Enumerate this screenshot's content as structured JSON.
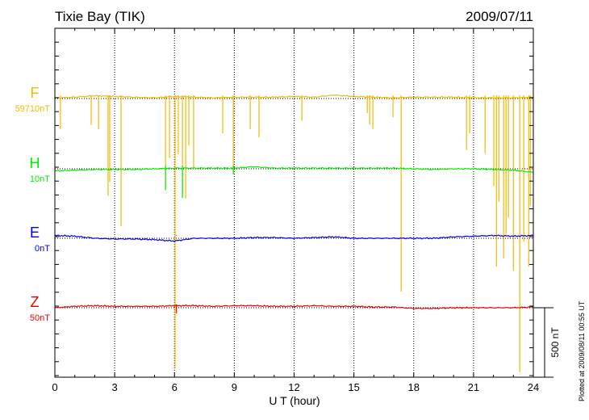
{
  "chart_data": {
    "type": "line",
    "title": "Tixie Bay (TIK)",
    "date": "2009/07/11",
    "xlabel": "U T (hour)",
    "xlim": [
      0,
      24
    ],
    "xticks": [
      "0",
      "3",
      "6",
      "9",
      "12",
      "15",
      "18",
      "21",
      "24"
    ],
    "scale_bar": "500 nT",
    "scale_bar_nT": 500,
    "footer": "Plotted at 2009/08/11 00:55 UT",
    "grid": "dotted vertical every 3 h, dotted baseline per component",
    "series": [
      {
        "name": "F",
        "baseline_label": "59710nT",
        "color": "#f5b800",
        "hours": [
          0,
          1,
          2,
          3,
          4,
          5,
          6,
          7,
          8,
          9,
          10,
          11,
          12,
          13,
          14,
          15,
          16,
          17,
          18,
          19,
          20,
          21,
          22,
          23,
          24
        ],
        "values": [
          5,
          10,
          20,
          15,
          10,
          5,
          15,
          10,
          5,
          10,
          10,
          10,
          15,
          10,
          25,
          15,
          10,
          5,
          10,
          10,
          10,
          5,
          5,
          5,
          10
        ],
        "spikes": [
          [
            0.28,
            220
          ],
          [
            1.82,
            190
          ],
          [
            2.19,
            220
          ],
          [
            2.67,
            700
          ],
          [
            2.75,
            600
          ],
          [
            3.32,
            920
          ],
          [
            5.55,
            660
          ],
          [
            5.75,
            430
          ],
          [
            6.03,
            1940
          ],
          [
            6.19,
            400
          ],
          [
            6.4,
            690
          ],
          [
            6.56,
            720
          ],
          [
            6.72,
            340
          ],
          [
            6.96,
            510
          ],
          [
            8.42,
            250
          ],
          [
            8.95,
            540
          ],
          [
            9.8,
            220
          ],
          [
            10.24,
            280
          ],
          [
            12.39,
            160
          ],
          [
            15.67,
            105
          ],
          [
            15.79,
            190
          ],
          [
            15.95,
            220
          ],
          [
            16.96,
            135
          ],
          [
            17.37,
            1390
          ],
          [
            20.65,
            370
          ],
          [
            20.81,
            250
          ],
          [
            21.58,
            395
          ],
          [
            22.02,
            630
          ],
          [
            22.15,
            1210
          ],
          [
            22.27,
            740
          ],
          [
            22.51,
            1150
          ],
          [
            22.63,
            980
          ],
          [
            22.75,
            860
          ],
          [
            23.0,
            1240
          ],
          [
            23.32,
            1970
          ],
          [
            23.52,
            1030
          ],
          [
            23.77,
            1210
          ],
          [
            23.85,
            770
          ]
        ]
      },
      {
        "name": "H",
        "baseline_label": "10nT",
        "color": "#00ee00",
        "hours": [
          0,
          1,
          2,
          3,
          4,
          5,
          6,
          7,
          8,
          9,
          10,
          11,
          12,
          13,
          14,
          15,
          16,
          17,
          18,
          19,
          20,
          21,
          22,
          23,
          24
        ],
        "values": [
          -15,
          -10,
          -5,
          -5,
          -5,
          0,
          5,
          5,
          5,
          5,
          15,
          5,
          5,
          5,
          5,
          5,
          5,
          5,
          0,
          -5,
          0,
          0,
          -5,
          -10,
          -25
        ],
        "spikes": [
          [
            5.55,
            150
          ],
          [
            6.4,
            210
          ],
          [
            8.95,
            40
          ]
        ]
      },
      {
        "name": "E",
        "baseline_label": "0nT",
        "color": "#0000ee",
        "hours": [
          0,
          1,
          2,
          3,
          4,
          5,
          6,
          7,
          8,
          9,
          10,
          11,
          12,
          13,
          14,
          15,
          16,
          17,
          18,
          19,
          20,
          21,
          22,
          23,
          24
        ],
        "values": [
          20,
          15,
          0,
          -5,
          -5,
          -10,
          -20,
          0,
          0,
          0,
          5,
          5,
          0,
          5,
          10,
          0,
          0,
          0,
          0,
          0,
          10,
          15,
          20,
          15,
          20
        ],
        "spikes": [
          [
            6.1,
            -20
          ]
        ]
      },
      {
        "name": "Z",
        "baseline_label": "50nT",
        "color": "#ee0000",
        "hours": [
          0,
          1,
          2,
          3,
          4,
          5,
          6,
          7,
          8,
          9,
          10,
          11,
          12,
          13,
          14,
          15,
          16,
          17,
          18,
          19,
          20,
          21,
          22,
          23,
          24
        ],
        "values": [
          0,
          10,
          15,
          10,
          10,
          10,
          15,
          15,
          10,
          15,
          15,
          10,
          10,
          15,
          10,
          10,
          5,
          5,
          -5,
          -5,
          0,
          0,
          0,
          0,
          5
        ],
        "spikes": [
          [
            6.1,
            40
          ]
        ]
      }
    ]
  }
}
